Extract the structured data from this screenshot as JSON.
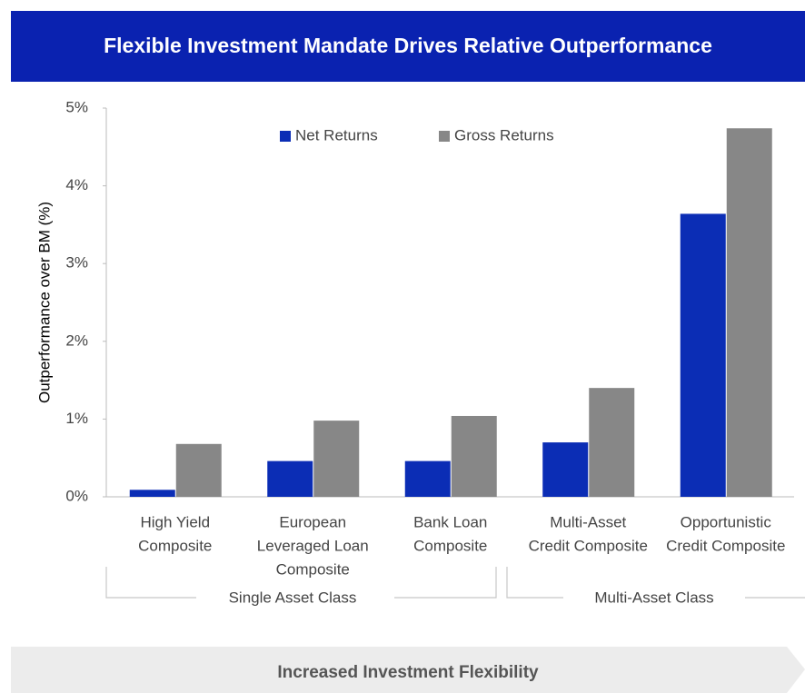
{
  "chart_data": {
    "type": "bar",
    "title": "Flexible Investment Mandate Drives Relative Outperformance",
    "y_label": "Outperformance over BM (%)",
    "categories": [
      [
        "High Yield",
        "Composite"
      ],
      [
        "European",
        "Leveraged Loan",
        "Composite"
      ],
      [
        "Bank Loan",
        "Composite"
      ],
      [
        "Multi-Asset",
        "Credit Composite"
      ],
      [
        "Opportunistic",
        "Credit Composite"
      ]
    ],
    "series": [
      {
        "name": "Net Returns",
        "color": "#0b2db5",
        "values": [
          0.09,
          0.46,
          0.46,
          0.7,
          3.64
        ]
      },
      {
        "name": "Gross Returns",
        "color": "#878787",
        "values": [
          0.68,
          0.98,
          1.04,
          1.4,
          4.74
        ]
      }
    ],
    "groups": [
      "Single Asset Class",
      "Multi-Asset Class"
    ],
    "ylim": [
      0,
      5
    ],
    "yticks": [
      {
        "value": 0,
        "label": "0%"
      },
      {
        "value": 1,
        "label": "1%"
      },
      {
        "value": 2,
        "label": "2%"
      },
      {
        "value": 3,
        "label": "3%"
      },
      {
        "value": 4,
        "label": "4%"
      },
      {
        "value": 5,
        "label": "5%"
      }
    ],
    "legend": "top",
    "footer": "Increased Investment Flexibility"
  }
}
